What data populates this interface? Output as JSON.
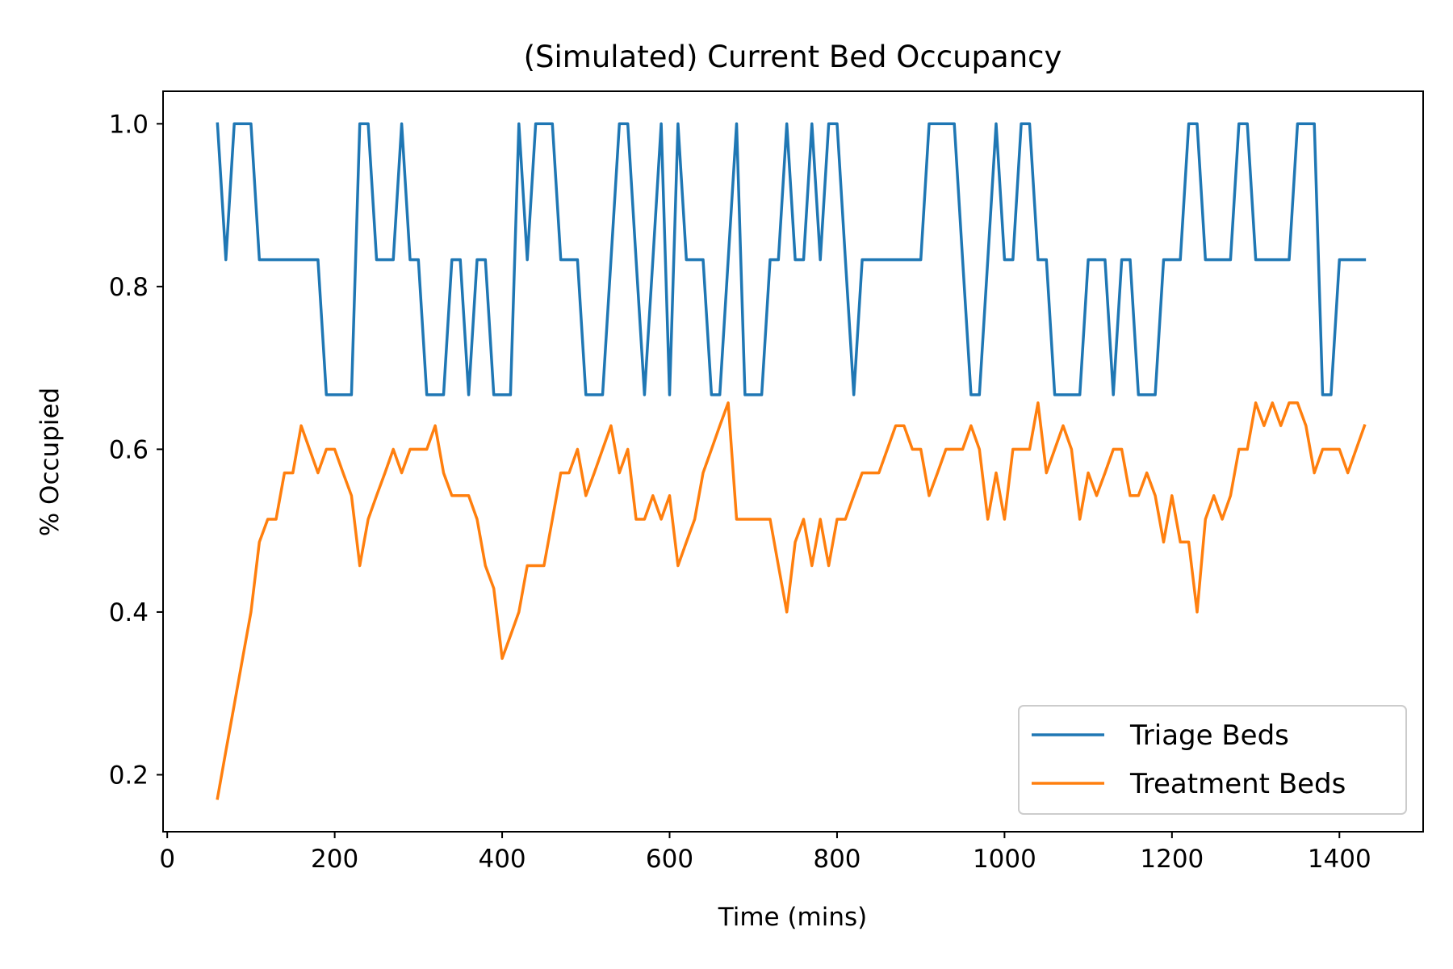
{
  "chart_data": {
    "type": "line",
    "title": "(Simulated) Current Bed Occupancy",
    "xlabel": "Time (mins)",
    "ylabel": "% Occupied",
    "xlim": [
      -5,
      1500
    ],
    "ylim": [
      0.13,
      1.04
    ],
    "xticks": [
      0,
      200,
      400,
      600,
      800,
      1000,
      1200,
      1400
    ],
    "yticks": [
      0.2,
      0.4,
      0.6,
      0.8,
      1.0
    ],
    "xtick_labels": [
      "0",
      "200",
      "400",
      "600",
      "800",
      "1000",
      "1200",
      "1400"
    ],
    "ytick_labels": [
      "0.2",
      "0.4",
      "0.6",
      "0.8",
      "1.0"
    ],
    "grid": false,
    "legend_position": "lower-right",
    "series": [
      {
        "name": "Triage Beds",
        "color": "#1f77b4",
        "x": [
          60,
          70,
          80,
          90,
          100,
          110,
          120,
          130,
          140,
          150,
          160,
          170,
          180,
          190,
          200,
          210,
          220,
          230,
          240,
          250,
          260,
          270,
          280,
          290,
          300,
          310,
          320,
          330,
          340,
          350,
          360,
          370,
          380,
          390,
          400,
          410,
          420,
          430,
          440,
          450,
          460,
          470,
          480,
          490,
          500,
          510,
          520,
          530,
          540,
          550,
          560,
          570,
          580,
          590,
          600,
          610,
          620,
          630,
          640,
          650,
          660,
          670,
          680,
          690,
          700,
          710,
          720,
          730,
          740,
          750,
          760,
          770,
          780,
          790,
          800,
          810,
          820,
          830,
          840,
          850,
          860,
          870,
          880,
          890,
          900,
          910,
          920,
          930,
          940,
          950,
          960,
          970,
          980,
          990,
          1000,
          1010,
          1020,
          1030,
          1040,
          1050,
          1060,
          1070,
          1080,
          1090,
          1100,
          1110,
          1120,
          1130,
          1140,
          1150,
          1160,
          1170,
          1180,
          1190,
          1200,
          1210,
          1220,
          1230,
          1240,
          1250,
          1260,
          1270,
          1280,
          1290,
          1300,
          1310,
          1320,
          1330,
          1340,
          1350,
          1360,
          1370,
          1380,
          1390,
          1400,
          1410,
          1420,
          1430
        ],
        "y": [
          1.0,
          0.833,
          1.0,
          1.0,
          1.0,
          0.833,
          0.833,
          0.833,
          0.833,
          0.833,
          0.833,
          0.833,
          0.833,
          0.667,
          0.667,
          0.667,
          0.667,
          1.0,
          1.0,
          0.833,
          0.833,
          0.833,
          1.0,
          0.833,
          0.833,
          0.667,
          0.667,
          0.667,
          0.833,
          0.833,
          0.667,
          0.833,
          0.833,
          0.667,
          0.667,
          0.667,
          1.0,
          0.833,
          1.0,
          1.0,
          1.0,
          0.833,
          0.833,
          0.833,
          0.667,
          0.667,
          0.667,
          0.833,
          1.0,
          1.0,
          0.833,
          0.667,
          0.833,
          1.0,
          0.667,
          1.0,
          0.833,
          0.833,
          0.833,
          0.667,
          0.667,
          0.833,
          1.0,
          0.667,
          0.667,
          0.667,
          0.833,
          0.833,
          1.0,
          0.833,
          0.833,
          1.0,
          0.833,
          1.0,
          1.0,
          0.833,
          0.667,
          0.833,
          0.833,
          0.833,
          0.833,
          0.833,
          0.833,
          0.833,
          0.833,
          1.0,
          1.0,
          1.0,
          1.0,
          0.833,
          0.667,
          0.667,
          0.833,
          1.0,
          0.833,
          0.833,
          1.0,
          1.0,
          0.833,
          0.833,
          0.667,
          0.667,
          0.667,
          0.667,
          0.833,
          0.833,
          0.833,
          0.667,
          0.833,
          0.833,
          0.667,
          0.667,
          0.667,
          0.833,
          0.833,
          0.833,
          1.0,
          1.0,
          0.833,
          0.833,
          0.833,
          0.833,
          1.0,
          1.0,
          0.833,
          0.833,
          0.833,
          0.833,
          0.833,
          1.0,
          1.0,
          1.0,
          0.667,
          0.667,
          0.833,
          0.833,
          0.833,
          0.833
        ]
      },
      {
        "name": "Treatment Beds",
        "color": "#ff7f0e",
        "x": [
          60,
          70,
          80,
          90,
          100,
          110,
          120,
          130,
          140,
          150,
          160,
          170,
          180,
          190,
          200,
          210,
          220,
          230,
          240,
          250,
          260,
          270,
          280,
          290,
          300,
          310,
          320,
          330,
          340,
          350,
          360,
          370,
          380,
          390,
          400,
          410,
          420,
          430,
          440,
          450,
          460,
          470,
          480,
          490,
          500,
          510,
          520,
          530,
          540,
          550,
          560,
          570,
          580,
          590,
          600,
          610,
          620,
          630,
          640,
          650,
          660,
          670,
          680,
          690,
          700,
          710,
          720,
          730,
          740,
          750,
          760,
          770,
          780,
          790,
          800,
          810,
          820,
          830,
          840,
          850,
          860,
          870,
          880,
          890,
          900,
          910,
          920,
          930,
          940,
          950,
          960,
          970,
          980,
          990,
          1000,
          1010,
          1020,
          1030,
          1040,
          1050,
          1060,
          1070,
          1080,
          1090,
          1100,
          1110,
          1120,
          1130,
          1140,
          1150,
          1160,
          1170,
          1180,
          1190,
          1200,
          1210,
          1220,
          1230,
          1240,
          1250,
          1260,
          1270,
          1280,
          1290,
          1300,
          1310,
          1320,
          1330,
          1340,
          1350,
          1360,
          1370,
          1380,
          1390,
          1400,
          1410,
          1420,
          1430
        ],
        "y": [
          0.171,
          0.229,
          0.286,
          0.343,
          0.4,
          0.486,
          0.514,
          0.514,
          0.571,
          0.571,
          0.629,
          0.6,
          0.571,
          0.6,
          0.6,
          0.571,
          0.543,
          0.457,
          0.514,
          0.543,
          0.571,
          0.6,
          0.571,
          0.6,
          0.6,
          0.6,
          0.629,
          0.571,
          0.543,
          0.543,
          0.543,
          0.514,
          0.457,
          0.429,
          0.343,
          0.371,
          0.4,
          0.457,
          0.457,
          0.457,
          0.514,
          0.571,
          0.571,
          0.6,
          0.543,
          0.571,
          0.6,
          0.629,
          0.571,
          0.6,
          0.514,
          0.514,
          0.543,
          0.514,
          0.543,
          0.457,
          0.486,
          0.514,
          0.571,
          0.6,
          0.629,
          0.657,
          0.514,
          0.514,
          0.514,
          0.514,
          0.514,
          0.457,
          0.4,
          0.486,
          0.514,
          0.457,
          0.514,
          0.457,
          0.514,
          0.514,
          0.543,
          0.571,
          0.571,
          0.571,
          0.6,
          0.629,
          0.629,
          0.6,
          0.6,
          0.543,
          0.571,
          0.6,
          0.6,
          0.6,
          0.629,
          0.6,
          0.514,
          0.571,
          0.514,
          0.6,
          0.6,
          0.6,
          0.657,
          0.571,
          0.6,
          0.629,
          0.6,
          0.514,
          0.571,
          0.543,
          0.571,
          0.6,
          0.6,
          0.543,
          0.543,
          0.571,
          0.543,
          0.486,
          0.543,
          0.486,
          0.486,
          0.4,
          0.514,
          0.543,
          0.514,
          0.543,
          0.6,
          0.6,
          0.657,
          0.629,
          0.657,
          0.629,
          0.657,
          0.657,
          0.629,
          0.571,
          0.6,
          0.6,
          0.6,
          0.571,
          0.6,
          0.629
        ]
      }
    ]
  }
}
